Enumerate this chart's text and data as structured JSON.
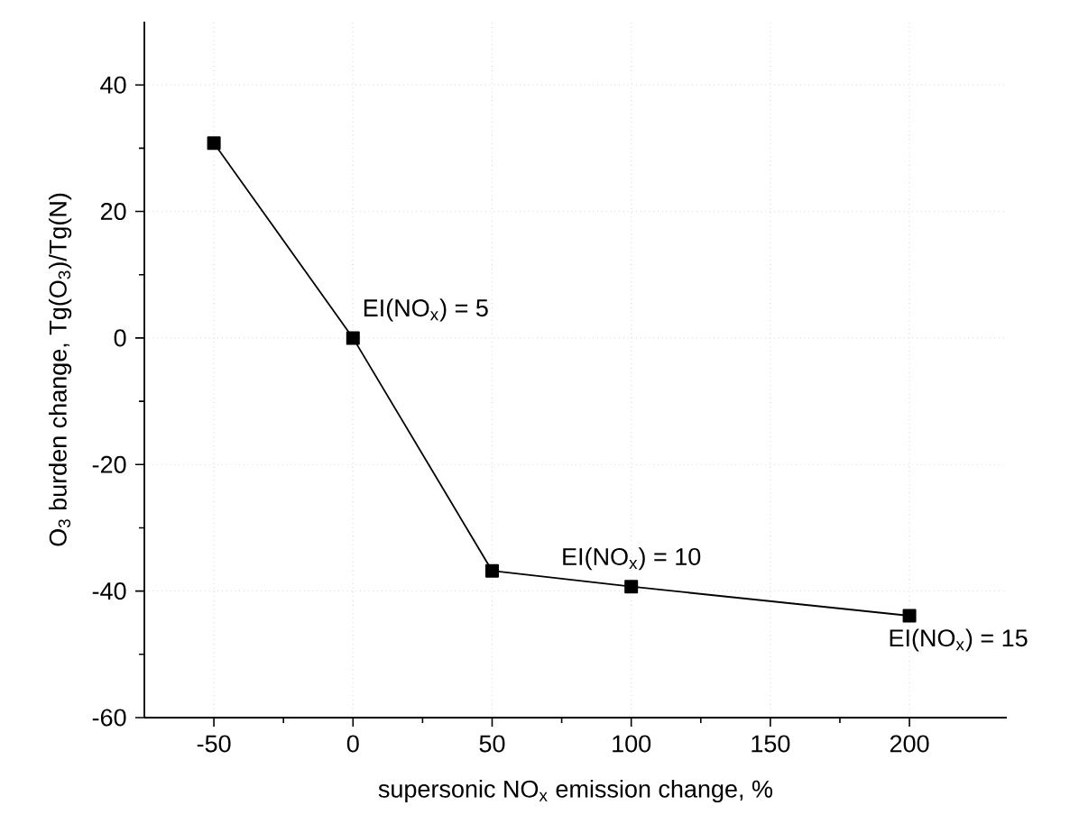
{
  "chart_data": {
    "type": "line",
    "xlabel": "supersonic NO$_{x}$ emission change, %",
    "ylabel": "O$_{3}$ burden change, Tg(O$_{3}$)/Tg(N)",
    "x": [
      -50,
      0,
      50,
      100,
      200
    ],
    "series": [
      {
        "color": "#000000",
        "values": [
          30.8,
          0,
          -36.8,
          -39.3,
          -43.9
        ]
      }
    ],
    "xlim": [
      -75,
      235
    ],
    "xticks": [
      -50,
      0,
      50,
      100,
      150,
      200
    ],
    "ylim": [
      -60,
      50
    ],
    "yticks": [
      -60,
      -40,
      -20,
      0,
      20,
      40
    ],
    "grid": true,
    "marker": "square",
    "line_style": "solid",
    "annotations": [
      {
        "text": "EI(NO$_{x}$) = 5",
        "x": 0,
        "y": 0
      },
      {
        "text": "EI(NO$_{x}$) = 10",
        "x": 100,
        "y": -39.3
      },
      {
        "text": "EI(NO$_{x}$) = 15",
        "x": 200,
        "y": -43.9
      }
    ]
  }
}
